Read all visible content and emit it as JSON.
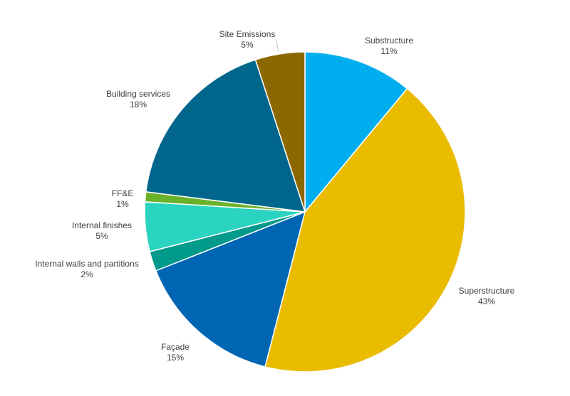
{
  "chart_data": {
    "type": "pie",
    "title": "",
    "slices": [
      {
        "name": "Substructure",
        "label": "11%",
        "value": 11,
        "color": "#00aeef"
      },
      {
        "name": "Superstructure",
        "label": "43%",
        "value": 43,
        "color": "#e9bc00"
      },
      {
        "name": "Façade",
        "label": "15%",
        "value": 15,
        "color": "#0066b3"
      },
      {
        "name": "Internal walls and partitions",
        "label": "2%",
        "value": 2,
        "color": "#00998a"
      },
      {
        "name": "Internal finishes",
        "label": "5%",
        "value": 5,
        "color": "#2bd4c0"
      },
      {
        "name": "FF&E",
        "label": "1%",
        "value": 1,
        "color": "#6bb22b"
      },
      {
        "name": "Building services",
        "label": "18%",
        "value": 18,
        "color": "#00668c"
      },
      {
        "name": "Site Emissions",
        "label": "5%",
        "value": 5,
        "color": "#8c6800"
      }
    ],
    "legend": "none",
    "data_labels": "outside-end"
  }
}
